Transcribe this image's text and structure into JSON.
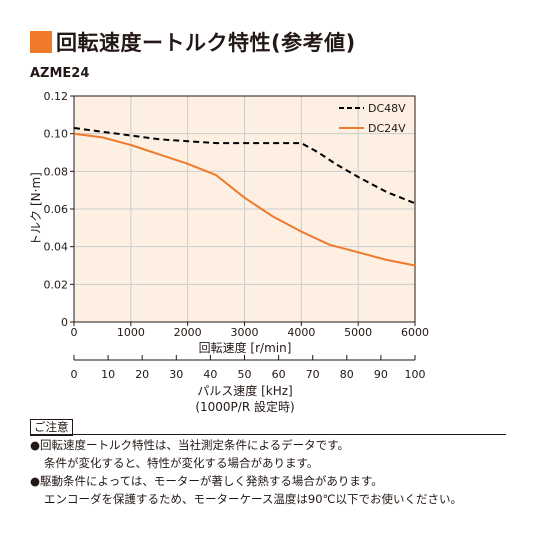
{
  "header": {
    "title": "回転速度ートルク特性(参考値)",
    "model": "AZME24"
  },
  "chart_data": {
    "type": "line",
    "ylabel": "トルク [N·m]",
    "xlabel": "回転速度 [r/min]",
    "xlim": [
      0,
      6000
    ],
    "ylim": [
      0,
      0.12
    ],
    "x_ticks": [
      "0",
      "1000",
      "2000",
      "3000",
      "4000",
      "5000",
      "6000"
    ],
    "y_ticks": [
      "0",
      "0.02",
      "0.04",
      "0.06",
      "0.08",
      "0.10",
      "0.12"
    ],
    "grid": true,
    "legend_position": "top-right",
    "series": [
      {
        "name": "DC48V",
        "color": "#000000",
        "style": "dashed",
        "x": [
          0,
          500,
          1000,
          1500,
          2000,
          2500,
          3000,
          3500,
          4000,
          4300,
          4600,
          5000,
          5500,
          6000
        ],
        "y": [
          0.103,
          0.101,
          0.099,
          0.097,
          0.096,
          0.095,
          0.095,
          0.095,
          0.095,
          0.09,
          0.084,
          0.077,
          0.069,
          0.063
        ]
      },
      {
        "name": "DC24V",
        "color": "#ee7a2a",
        "style": "solid",
        "x": [
          0,
          500,
          1000,
          1500,
          2000,
          2500,
          3000,
          3500,
          4000,
          4500,
          5000,
          5500,
          6000
        ],
        "y": [
          0.1,
          0.098,
          0.094,
          0.089,
          0.084,
          0.078,
          0.066,
          0.056,
          0.048,
          0.041,
          0.037,
          0.033,
          0.03
        ]
      }
    ],
    "secondary_axis": {
      "label_line1": "パルス速度 [kHz]",
      "label_line2": "(1000P/R 設定時)",
      "ticks": [
        "0",
        "10",
        "20",
        "30",
        "40",
        "50",
        "60",
        "70",
        "80",
        "90",
        "100"
      ],
      "range": [
        0,
        100
      ]
    }
  },
  "notes": {
    "heading": "ご注意",
    "lines": [
      "●回転速度ートルク特性は、当社測定条件によるデータです。",
      "条件が変化すると、特性が変化する場合があります。",
      "●駆動条件によっては、モーターが著しく発熱する場合があります。",
      "エンコーダを保護するため、モーターケース温度は90℃以下でお使いください。"
    ]
  },
  "colors": {
    "accent": "#ee7a2a",
    "plot_background": "#fdf0e3",
    "grid": "#cccccc"
  }
}
